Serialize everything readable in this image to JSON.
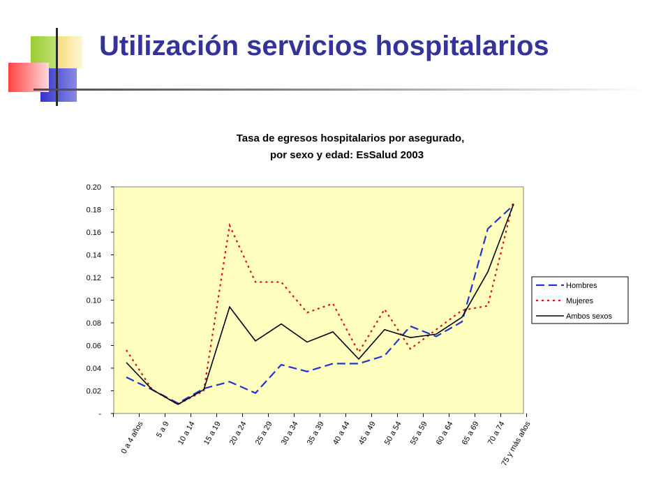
{
  "slide": {
    "title": "Utilización servicios hospitalarios"
  },
  "colors": {
    "title": "#333399",
    "plot_background": "#FFFFC0",
    "hombres": "#2233CC",
    "mujeres": "#DD1111",
    "ambos": "#000000"
  },
  "chart_data": {
    "type": "line",
    "title": "Tasa de egresos hospitalarios por asegurado,",
    "subtitle": "por sexo y edad: EsSalud 2003",
    "categories": [
      "0 a 4 años",
      "5 a 9",
      "10 a 14",
      "15 a 19",
      "20 a 24",
      "25 a 29",
      "30 a 34",
      "35 a 39",
      "40 a 44",
      "45 a 49",
      "50 a 54",
      "55 a 59",
      "60 a 64",
      "65 a 69",
      "70 a 74",
      "75 y más años"
    ],
    "y_ticks": [
      "-",
      "0.02",
      "0.04",
      "0.06",
      "0.08",
      "0.10",
      "0.12",
      "0.14",
      "0.16",
      "0.18",
      "0.20"
    ],
    "ylim": [
      0,
      0.2
    ],
    "grid": false,
    "legend_position": "right",
    "x": [
      "0 a 4 años",
      "",
      "5 a 9",
      "",
      "10 a 14",
      "",
      "15 a 19",
      "",
      "20 a 24",
      "",
      "25 a 29",
      "",
      "30 a 34",
      "",
      "35 a 39",
      "",
      "40 a 44",
      "",
      "45 a 49",
      "",
      "50 a 54",
      "",
      "55 a 59",
      "",
      "60 a 64",
      "",
      "65 a 69",
      "",
      "70 a 74",
      "",
      "75 y más años"
    ],
    "series": [
      {
        "name": "Hombres",
        "style": "dashed",
        "color": "#2233CC",
        "values": [
          0.032,
          0.021,
          0.009,
          0.022,
          0.028,
          0.018,
          0.043,
          0.037,
          0.044,
          0.044,
          0.051,
          0.077,
          0.068,
          0.081,
          0.163,
          0.184
        ]
      },
      {
        "name": "Mujeres",
        "style": "dotted",
        "color": "#DD1111",
        "values": [
          0.056,
          0.021,
          0.008,
          0.02,
          0.166,
          0.116,
          0.116,
          0.089,
          0.097,
          0.054,
          0.092,
          0.057,
          0.074,
          0.091,
          0.095,
          0.188
        ]
      },
      {
        "name": "Ambos sexos",
        "style": "solid",
        "color": "#000000",
        "values": [
          0.045,
          0.021,
          0.008,
          0.021,
          0.094,
          0.064,
          0.079,
          0.063,
          0.072,
          0.048,
          0.074,
          0.067,
          0.07,
          0.085,
          0.125,
          0.185
        ]
      }
    ]
  }
}
